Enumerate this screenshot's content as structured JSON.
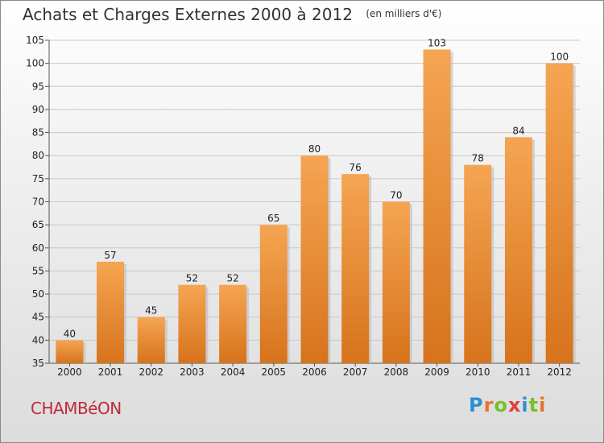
{
  "title": {
    "main": "Achats et Charges Externes 2000 à 2012",
    "unit": "(en milliers d'€)"
  },
  "commune": "CHAMBéON",
  "logo": {
    "letters": [
      "P",
      "r",
      "o",
      "x",
      "i",
      "t",
      "i"
    ]
  },
  "colors": {
    "bar_light": "#f5a552",
    "bar_dark": "#d7731c",
    "commune": "#c0283b"
  },
  "chart_data": {
    "type": "bar",
    "title": "Achats et Charges Externes 2000 à 2012",
    "subtitle": "(en milliers d'€)",
    "categories": [
      "2000",
      "2001",
      "2002",
      "2003",
      "2004",
      "2005",
      "2006",
      "2007",
      "2008",
      "2009",
      "2010",
      "2011",
      "2012"
    ],
    "values": [
      40,
      57,
      45,
      52,
      52,
      65,
      80,
      76,
      70,
      103,
      78,
      84,
      100
    ],
    "ylim": [
      35,
      105
    ],
    "yticks": [
      35,
      40,
      45,
      50,
      55,
      60,
      65,
      70,
      75,
      80,
      85,
      90,
      95,
      100,
      105
    ],
    "grid": true,
    "data_labels": true
  }
}
